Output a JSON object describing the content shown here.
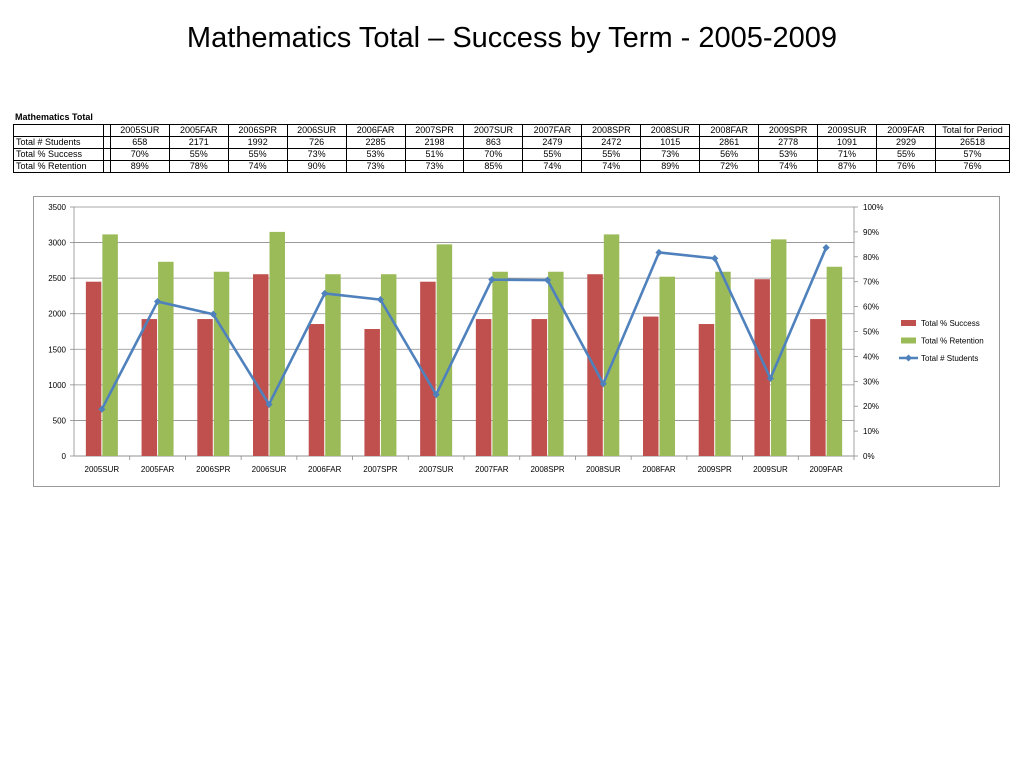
{
  "title": "Mathematics Total – Success by Term - 2005-2009",
  "table": {
    "caption": "Mathematics Total",
    "columns": [
      "2005SUR",
      "2005FAR",
      "2006SPR",
      "2006SUR",
      "2006FAR",
      "2007SPR",
      "2007SUR",
      "2007FAR",
      "2008SPR",
      "2008SUR",
      "2008FAR",
      "2009SPR",
      "2009SUR",
      "2009FAR",
      "Total for Period"
    ],
    "rows": [
      {
        "label": "Total # Students",
        "cells": [
          "658",
          "2171",
          "1992",
          "726",
          "2285",
          "2198",
          "863",
          "2479",
          "2472",
          "1015",
          "2861",
          "2778",
          "1091",
          "2929",
          "26518"
        ]
      },
      {
        "label": "Total % Success",
        "cells": [
          "70%",
          "55%",
          "55%",
          "73%",
          "53%",
          "51%",
          "70%",
          "55%",
          "55%",
          "73%",
          "56%",
          "53%",
          "71%",
          "55%",
          "57%"
        ]
      },
      {
        "label": "Total % Retention",
        "cells": [
          "89%",
          "78%",
          "74%",
          "90%",
          "73%",
          "73%",
          "85%",
          "74%",
          "74%",
          "89%",
          "72%",
          "74%",
          "87%",
          "76%",
          "76%"
        ]
      }
    ]
  },
  "chart_data": {
    "type": "bar",
    "title": "",
    "xlabel": "",
    "ylabel": "",
    "categories": [
      "2005SUR",
      "2005FAR",
      "2006SPR",
      "2006SUR",
      "2006FAR",
      "2007SPR",
      "2007SUR",
      "2007FAR",
      "2008SPR",
      "2008SUR",
      "2008FAR",
      "2009SPR",
      "2009SUR",
      "2009FAR"
    ],
    "series": [
      {
        "name": "Total % Success",
        "type": "bar",
        "axis": "right",
        "color": "#c0504d",
        "values": [
          0.7,
          0.55,
          0.55,
          0.73,
          0.53,
          0.51,
          0.7,
          0.55,
          0.55,
          0.73,
          0.56,
          0.53,
          0.71,
          0.55
        ]
      },
      {
        "name": "Total % Retention",
        "type": "bar",
        "axis": "right",
        "color": "#9bbb59",
        "values": [
          0.89,
          0.78,
          0.74,
          0.9,
          0.73,
          0.73,
          0.85,
          0.74,
          0.74,
          0.89,
          0.72,
          0.74,
          0.87,
          0.76
        ]
      },
      {
        "name": "Total # Students",
        "type": "line",
        "axis": "left",
        "color": "#4f81bd",
        "values": [
          658,
          2171,
          1992,
          726,
          2285,
          2198,
          863,
          2479,
          2472,
          1015,
          2861,
          2778,
          1091,
          2929
        ]
      }
    ],
    "ylim_left": [
      0,
      3500
    ],
    "ylim_right": [
      0,
      1
    ],
    "yticks_left": [
      "0",
      "500",
      "1000",
      "1500",
      "2000",
      "2500",
      "3000",
      "3500"
    ],
    "yticks_right": [
      "0%",
      "10%",
      "20%",
      "30%",
      "40%",
      "50%",
      "60%",
      "70%",
      "80%",
      "90%",
      "100%"
    ],
    "grid": true,
    "legend_position": "right"
  }
}
